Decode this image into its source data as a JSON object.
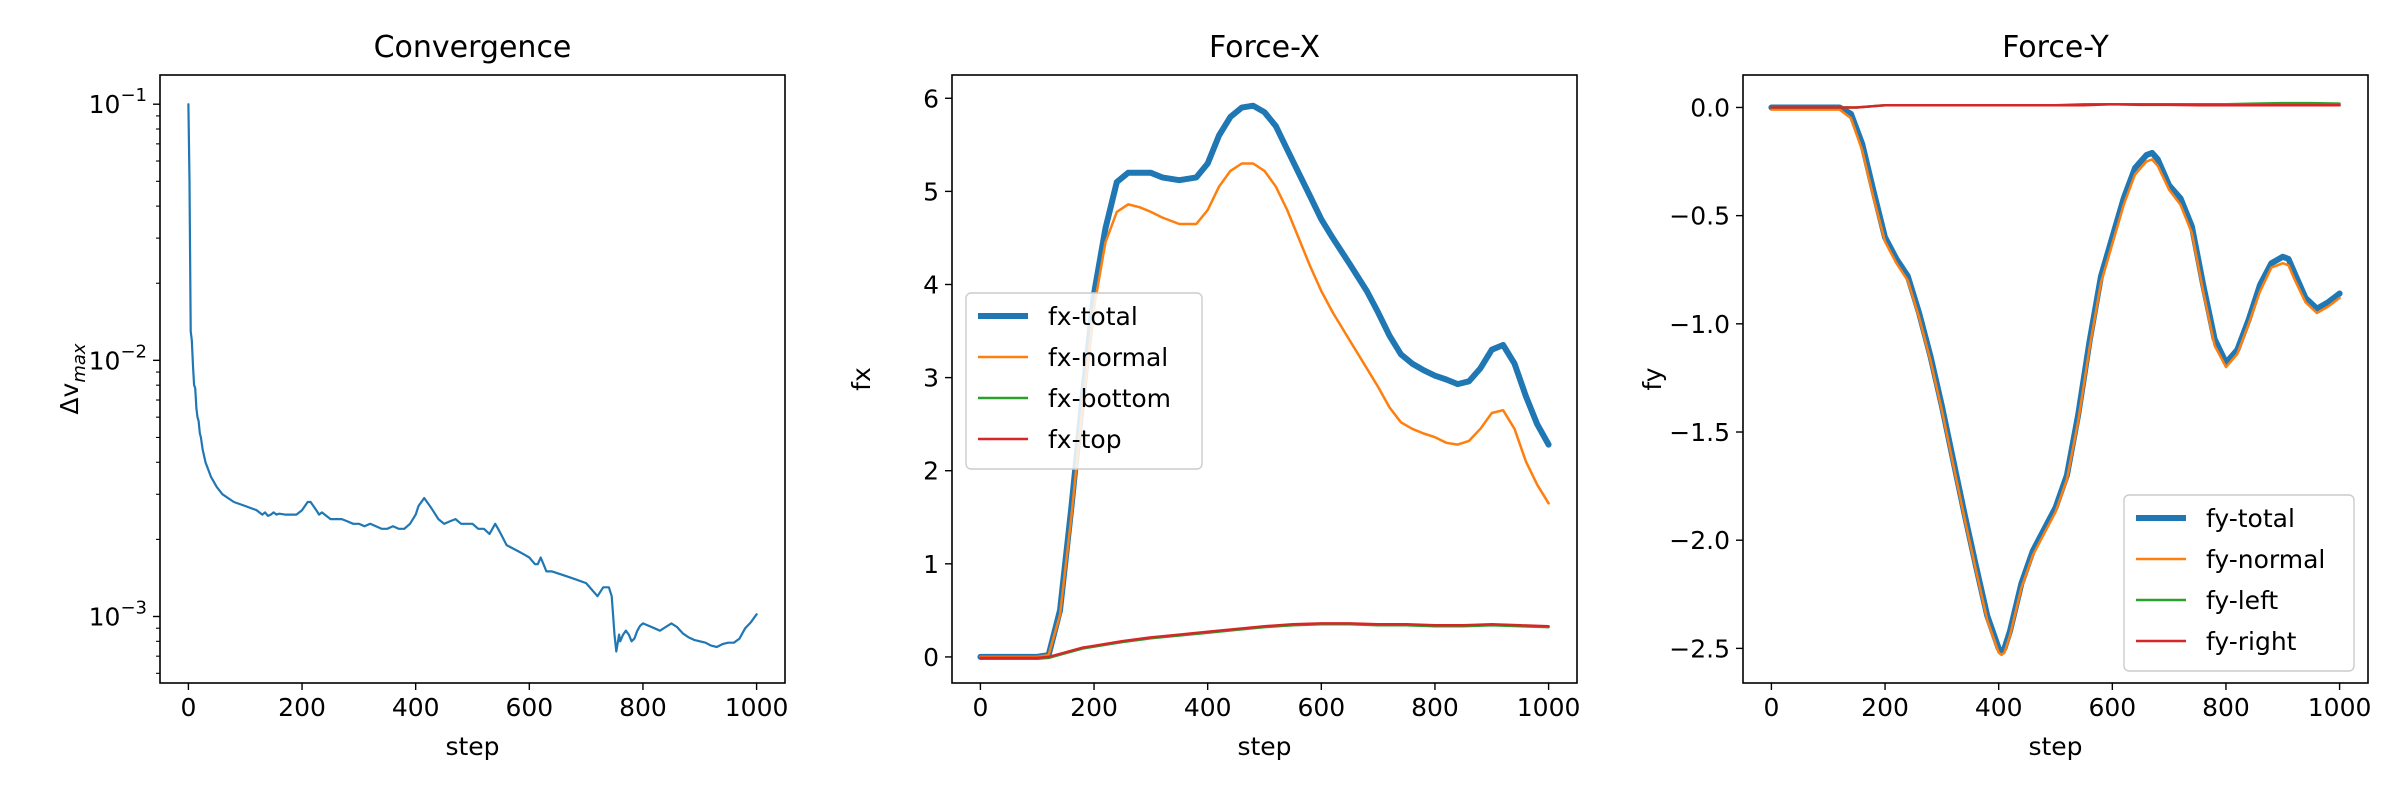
{
  "chart_data": [
    {
      "type": "line",
      "title": "Convergence",
      "xlabel": "step",
      "ylabel": "Δv_max",
      "yscale": "log",
      "xlim": [
        -50,
        1050
      ],
      "ylim": [
        0.00055,
        0.13
      ],
      "xticks": [
        0,
        200,
        400,
        600,
        800,
        1000
      ],
      "xticklabels": [
        "0",
        "200",
        "400",
        "600",
        "800",
        "1000"
      ],
      "yticks": [
        0.001,
        0.01,
        0.1
      ],
      "yticklabels": [
        "10^-3",
        "10^-2",
        "10^-1"
      ],
      "grid": false,
      "legend": null,
      "series": [
        {
          "color": "#1f77b4",
          "width": 2.2,
          "x": [
            0,
            2,
            4,
            6,
            8,
            10,
            12,
            14,
            16,
            18,
            20,
            22,
            25,
            30,
            40,
            50,
            60,
            80,
            100,
            120,
            130,
            135,
            140,
            145,
            150,
            155,
            160,
            170,
            180,
            190,
            200,
            205,
            210,
            215,
            220,
            225,
            230,
            235,
            240,
            250,
            260,
            270,
            280,
            290,
            300,
            310,
            320,
            330,
            340,
            350,
            360,
            370,
            380,
            390,
            400,
            405,
            410,
            415,
            420,
            425,
            430,
            440,
            450,
            460,
            470,
            480,
            490,
            500,
            510,
            520,
            530,
            535,
            540,
            545,
            550,
            560,
            570,
            580,
            590,
            600,
            610,
            615,
            620,
            625,
            630,
            640,
            660,
            680,
            700,
            720,
            730,
            740,
            745,
            750,
            753,
            756,
            758,
            760,
            765,
            770,
            775,
            780,
            785,
            790,
            795,
            800,
            810,
            820,
            830,
            840,
            850,
            860,
            870,
            880,
            890,
            900,
            910,
            920,
            930,
            940,
            950,
            960,
            970,
            980,
            990,
            1000
          ],
          "y": [
            0.1,
            0.05,
            0.013,
            0.012,
            0.0095,
            0.008,
            0.0078,
            0.0065,
            0.006,
            0.0058,
            0.0052,
            0.005,
            0.0045,
            0.004,
            0.0035,
            0.0032,
            0.003,
            0.0028,
            0.0027,
            0.0026,
            0.0025,
            0.00255,
            0.00247,
            0.0025,
            0.00255,
            0.0025,
            0.00252,
            0.0025,
            0.0025,
            0.0025,
            0.0026,
            0.0027,
            0.0028,
            0.0028,
            0.0027,
            0.0026,
            0.0025,
            0.00255,
            0.0025,
            0.0024,
            0.0024,
            0.0024,
            0.00235,
            0.0023,
            0.0023,
            0.00225,
            0.0023,
            0.00225,
            0.0022,
            0.0022,
            0.00225,
            0.0022,
            0.0022,
            0.0023,
            0.0025,
            0.0027,
            0.0028,
            0.0029,
            0.0028,
            0.0027,
            0.0026,
            0.0024,
            0.0023,
            0.00235,
            0.0024,
            0.0023,
            0.0023,
            0.0023,
            0.0022,
            0.0022,
            0.0021,
            0.0022,
            0.0023,
            0.0022,
            0.0021,
            0.0019,
            0.00185,
            0.0018,
            0.00175,
            0.0017,
            0.0016,
            0.0016,
            0.0017,
            0.0016,
            0.0015,
            0.0015,
            0.00145,
            0.0014,
            0.00135,
            0.0012,
            0.0013,
            0.0013,
            0.0012,
            0.00085,
            0.00073,
            0.0008,
            0.00085,
            0.0008,
            0.00085,
            0.00088,
            0.00085,
            0.0008,
            0.00082,
            0.00088,
            0.00092,
            0.00094,
            0.00092,
            0.0009,
            0.00088,
            0.00091,
            0.00094,
            0.00091,
            0.00086,
            0.00083,
            0.00081,
            0.0008,
            0.00079,
            0.00077,
            0.00076,
            0.00078,
            0.00079,
            0.00079,
            0.00082,
            0.0009,
            0.00095,
            0.00102
          ]
        }
      ]
    },
    {
      "type": "line",
      "title": "Force-X",
      "xlabel": "step",
      "ylabel": "fx",
      "xlim": [
        -50,
        1050
      ],
      "ylim": [
        -0.28,
        6.25
      ],
      "xticks": [
        0,
        200,
        400,
        600,
        800,
        1000
      ],
      "xticklabels": [
        "0",
        "200",
        "400",
        "600",
        "800",
        "1000"
      ],
      "yticks": [
        0,
        1,
        2,
        3,
        4,
        5,
        6
      ],
      "yticklabels": [
        "0",
        "1",
        "2",
        "3",
        "4",
        "5",
        "6"
      ],
      "grid": false,
      "legend": "center-left",
      "series": [
        {
          "name": "fx-total",
          "color": "#1f77b4",
          "width": 6,
          "x": [
            0,
            50,
            100,
            120,
            140,
            160,
            180,
            200,
            220,
            240,
            260,
            280,
            300,
            320,
            350,
            380,
            400,
            420,
            440,
            460,
            480,
            500,
            520,
            540,
            560,
            580,
            600,
            620,
            650,
            680,
            700,
            720,
            740,
            760,
            780,
            800,
            820,
            840,
            860,
            880,
            900,
            920,
            940,
            960,
            980,
            1000
          ],
          "y": [
            0,
            0,
            0,
            0.02,
            0.5,
            1.6,
            2.8,
            3.9,
            4.6,
            5.1,
            5.2,
            5.2,
            5.2,
            5.15,
            5.12,
            5.15,
            5.3,
            5.6,
            5.8,
            5.9,
            5.92,
            5.85,
            5.7,
            5.45,
            5.2,
            4.95,
            4.7,
            4.5,
            4.22,
            3.93,
            3.7,
            3.45,
            3.25,
            3.15,
            3.08,
            3.02,
            2.98,
            2.93,
            2.96,
            3.1,
            3.3,
            3.35,
            3.15,
            2.8,
            2.5,
            2.28
          ]
        },
        {
          "name": "fx-normal",
          "color": "#ff7f0e",
          "width": 2.5,
          "x": [
            0,
            50,
            100,
            120,
            140,
            160,
            180,
            200,
            220,
            240,
            260,
            280,
            300,
            320,
            350,
            380,
            400,
            420,
            440,
            460,
            480,
            500,
            520,
            540,
            560,
            580,
            600,
            620,
            650,
            680,
            700,
            720,
            740,
            760,
            780,
            800,
            820,
            840,
            860,
            880,
            900,
            920,
            940,
            960,
            980,
            1000
          ],
          "y": [
            0,
            0,
            0,
            0.02,
            0.45,
            1.5,
            2.7,
            3.75,
            4.45,
            4.78,
            4.86,
            4.83,
            4.78,
            4.72,
            4.65,
            4.65,
            4.8,
            5.05,
            5.22,
            5.3,
            5.3,
            5.22,
            5.05,
            4.8,
            4.5,
            4.2,
            3.93,
            3.7,
            3.4,
            3.1,
            2.9,
            2.68,
            2.52,
            2.45,
            2.4,
            2.36,
            2.3,
            2.28,
            2.32,
            2.45,
            2.62,
            2.65,
            2.45,
            2.1,
            1.85,
            1.65
          ]
        },
        {
          "name": "fx-bottom",
          "color": "#2ca02c",
          "width": 2.5,
          "x": [
            0,
            100,
            120,
            150,
            180,
            200,
            250,
            300,
            350,
            400,
            450,
            500,
            550,
            600,
            650,
            700,
            750,
            800,
            850,
            900,
            950,
            1000
          ],
          "y": [
            -0.02,
            -0.02,
            -0.01,
            0.04,
            0.09,
            0.11,
            0.16,
            0.2,
            0.23,
            0.26,
            0.29,
            0.32,
            0.34,
            0.35,
            0.35,
            0.34,
            0.34,
            0.33,
            0.33,
            0.34,
            0.33,
            0.32
          ]
        },
        {
          "name": "fx-top",
          "color": "#d62728",
          "width": 2.5,
          "x": [
            0,
            100,
            120,
            150,
            180,
            200,
            250,
            300,
            350,
            400,
            450,
            500,
            550,
            600,
            650,
            700,
            750,
            800,
            850,
            900,
            950,
            1000
          ],
          "y": [
            -0.01,
            -0.01,
            0,
            0.05,
            0.1,
            0.12,
            0.17,
            0.21,
            0.24,
            0.27,
            0.3,
            0.33,
            0.35,
            0.36,
            0.36,
            0.35,
            0.35,
            0.34,
            0.34,
            0.35,
            0.34,
            0.33
          ]
        }
      ]
    },
    {
      "type": "line",
      "title": "Force-Y",
      "xlabel": "step",
      "ylabel": "fy",
      "xlim": [
        -50,
        1050
      ],
      "ylim": [
        -2.66,
        0.15
      ],
      "xticks": [
        0,
        200,
        400,
        600,
        800,
        1000
      ],
      "xticklabels": [
        "0",
        "200",
        "400",
        "600",
        "800",
        "1000"
      ],
      "yticks": [
        0.0,
        -0.5,
        -1.0,
        -1.5,
        -2.0,
        -2.5
      ],
      "yticklabels": [
        "0.0",
        "−0.5",
        "−1.0",
        "−1.5",
        "−2.0",
        "−2.5"
      ],
      "grid": false,
      "legend": "lower-right",
      "series": [
        {
          "name": "fy-total",
          "color": "#1f77b4",
          "width": 6,
          "x": [
            0,
            50,
            100,
            120,
            140,
            160,
            180,
            200,
            220,
            240,
            260,
            280,
            300,
            320,
            340,
            360,
            380,
            400,
            405,
            410,
            420,
            440,
            460,
            480,
            500,
            520,
            540,
            560,
            580,
            600,
            620,
            640,
            660,
            670,
            680,
            700,
            720,
            740,
            760,
            780,
            800,
            820,
            840,
            860,
            880,
            900,
            910,
            920,
            940,
            960,
            980,
            990,
            1000
          ],
          "y": [
            0,
            0,
            0,
            0,
            -0.03,
            -0.17,
            -0.39,
            -0.6,
            -0.7,
            -0.78,
            -0.95,
            -1.15,
            -1.38,
            -1.63,
            -1.88,
            -2.12,
            -2.35,
            -2.5,
            -2.51,
            -2.5,
            -2.42,
            -2.2,
            -2.05,
            -1.95,
            -1.85,
            -1.7,
            -1.42,
            -1.08,
            -0.78,
            -0.6,
            -0.42,
            -0.28,
            -0.22,
            -0.21,
            -0.24,
            -0.36,
            -0.42,
            -0.55,
            -0.82,
            -1.07,
            -1.18,
            -1.12,
            -0.98,
            -0.82,
            -0.72,
            -0.69,
            -0.7,
            -0.76,
            -0.88,
            -0.93,
            -0.9,
            -0.88,
            -0.86
          ]
        },
        {
          "name": "fy-normal",
          "color": "#ff7f0e",
          "width": 2.5,
          "x": [
            0,
            50,
            100,
            120,
            140,
            160,
            180,
            200,
            220,
            240,
            260,
            280,
            300,
            320,
            340,
            360,
            380,
            400,
            405,
            410,
            420,
            440,
            460,
            480,
            500,
            520,
            540,
            560,
            580,
            600,
            620,
            640,
            660,
            670,
            680,
            700,
            720,
            740,
            760,
            780,
            800,
            820,
            840,
            860,
            880,
            900,
            910,
            920,
            940,
            960,
            980,
            990,
            1000
          ],
          "y": [
            -0.01,
            -0.01,
            -0.01,
            -0.01,
            -0.05,
            -0.2,
            -0.42,
            -0.62,
            -0.72,
            -0.8,
            -0.97,
            -1.17,
            -1.4,
            -1.65,
            -1.9,
            -2.14,
            -2.37,
            -2.52,
            -2.53,
            -2.52,
            -2.44,
            -2.22,
            -2.07,
            -1.97,
            -1.87,
            -1.72,
            -1.45,
            -1.11,
            -0.81,
            -0.63,
            -0.45,
            -0.31,
            -0.25,
            -0.24,
            -0.27,
            -0.38,
            -0.45,
            -0.58,
            -0.85,
            -1.1,
            -1.2,
            -1.14,
            -1.0,
            -0.85,
            -0.74,
            -0.72,
            -0.73,
            -0.79,
            -0.9,
            -0.95,
            -0.92,
            -0.9,
            -0.88
          ]
        },
        {
          "name": "fy-left",
          "color": "#2ca02c",
          "width": 2.5,
          "x": [
            0,
            100,
            150,
            200,
            250,
            300,
            350,
            400,
            450,
            500,
            550,
            600,
            650,
            700,
            750,
            800,
            850,
            900,
            950,
            1000
          ],
          "y": [
            0,
            0,
            0,
            0.01,
            0.01,
            0.01,
            0.01,
            0.01,
            0.01,
            0.01,
            0.015,
            0.015,
            0.015,
            0.015,
            0.015,
            0.015,
            0.018,
            0.02,
            0.02,
            0.018
          ]
        },
        {
          "name": "fy-right",
          "color": "#d62728",
          "width": 2.5,
          "x": [
            0,
            100,
            150,
            200,
            250,
            300,
            350,
            400,
            450,
            500,
            550,
            600,
            650,
            700,
            750,
            800,
            850,
            900,
            950,
            1000
          ],
          "y": [
            0,
            0,
            0,
            0.01,
            0.01,
            0.01,
            0.01,
            0.01,
            0.01,
            0.01,
            0.01,
            0.015,
            0.012,
            0.012,
            0.01,
            0.01,
            0.01,
            0.01,
            0.01,
            0.01
          ]
        }
      ]
    }
  ]
}
